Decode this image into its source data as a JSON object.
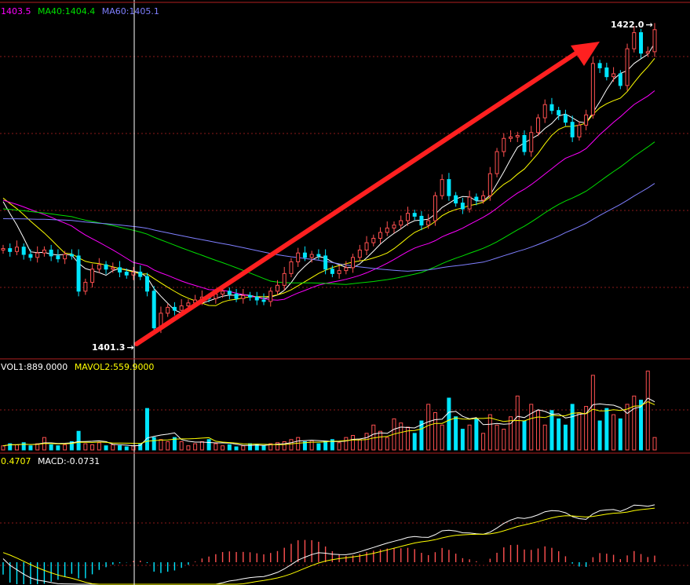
{
  "legend_price": {
    "ma20": "1403.5",
    "ma40": "MA40:1404.4",
    "ma60": "MA60:1405.1"
  },
  "legend_volume": {
    "vol": "VOL1:889.0000",
    "mavol": "MAVOL2:559.9000"
  },
  "legend_macd": {
    "dea": "0.4707",
    "macd": "MACD:-0.0731"
  },
  "annotations": {
    "high_label": "1422.0",
    "low_label": "1401.3",
    "arrow": "→"
  },
  "colors": {
    "background": "#000000",
    "up_candle": "#ff5050",
    "down_candle": "#00e6ff",
    "ma5": "#ffffff",
    "ma10": "#ffff00",
    "ma20": "#ff00ff",
    "ma40": "#00e000",
    "ma60": "#7f7fff",
    "grid": "#8b1a1a",
    "trend_arrow": "#ff2020",
    "crosshair": "#ffffff"
  },
  "chart_data": {
    "type": "candlestick",
    "subtype": "intraday price with volume and MACD panels",
    "price_range": [
      1399.5,
      1423.5
    ],
    "high": 1422.0,
    "low": 1401.3,
    "price_series": [
      1406.9,
      1406.7,
      1407.0,
      1406.5,
      1406.3,
      1406.6,
      1406.8,
      1406.4,
      1406.2,
      1406.5,
      1406.4,
      1404.0,
      1404.6,
      1405.5,
      1405.8,
      1405.5,
      1405.6,
      1405.3,
      1405.1,
      1405.3,
      1405.0,
      1404.0,
      1401.5,
      1402.5,
      1402.9,
      1402.7,
      1403.0,
      1403.2,
      1403.4,
      1403.6,
      1403.5,
      1403.8,
      1404.0,
      1403.8,
      1403.5,
      1403.7,
      1403.6,
      1403.4,
      1403.3,
      1404.0,
      1404.4,
      1405.2,
      1406.0,
      1406.6,
      1406.3,
      1406.5,
      1406.4,
      1405.5,
      1405.2,
      1405.4,
      1405.6,
      1406.3,
      1406.8,
      1407.3,
      1407.6,
      1408.0,
      1408.3,
      1408.5,
      1408.8,
      1409.3,
      1409.1,
      1408.5,
      1408.8,
      1410.5,
      1411.6,
      1410.5,
      1410.0,
      1409.6,
      1410.4,
      1410.2,
      1410.5,
      1412.0,
      1413.5,
      1414.4,
      1414.5,
      1414.6,
      1413.5,
      1414.8,
      1415.8,
      1416.7,
      1416.3,
      1416.0,
      1415.5,
      1414.5,
      1415.3,
      1416.0,
      1419.5,
      1419.2,
      1418.6,
      1418.8,
      1418.0,
      1420.5,
      1421.6,
      1420.2,
      1420.3,
      1421.8
    ],
    "volume_series": [
      20,
      30,
      25,
      35,
      20,
      30,
      60,
      25,
      20,
      25,
      40,
      90,
      30,
      25,
      35,
      20,
      25,
      20,
      15,
      20,
      30,
      200,
      60,
      50,
      40,
      60,
      40,
      20,
      30,
      40,
      50,
      30,
      20,
      25,
      15,
      20,
      30,
      25,
      20,
      30,
      35,
      40,
      50,
      60,
      40,
      45,
      30,
      40,
      50,
      35,
      60,
      70,
      50,
      80,
      120,
      90,
      60,
      150,
      130,
      110,
      80,
      140,
      220,
      180,
      120,
      250,
      160,
      100,
      120,
      150,
      80,
      170,
      120,
      100,
      160,
      260,
      140,
      220,
      190,
      120,
      190,
      150,
      120,
      220,
      180,
      210,
      360,
      140,
      200,
      170,
      150,
      220,
      260,
      240,
      380,
      60
    ],
    "macd_range": [
      -1.0,
      1.0
    ]
  }
}
